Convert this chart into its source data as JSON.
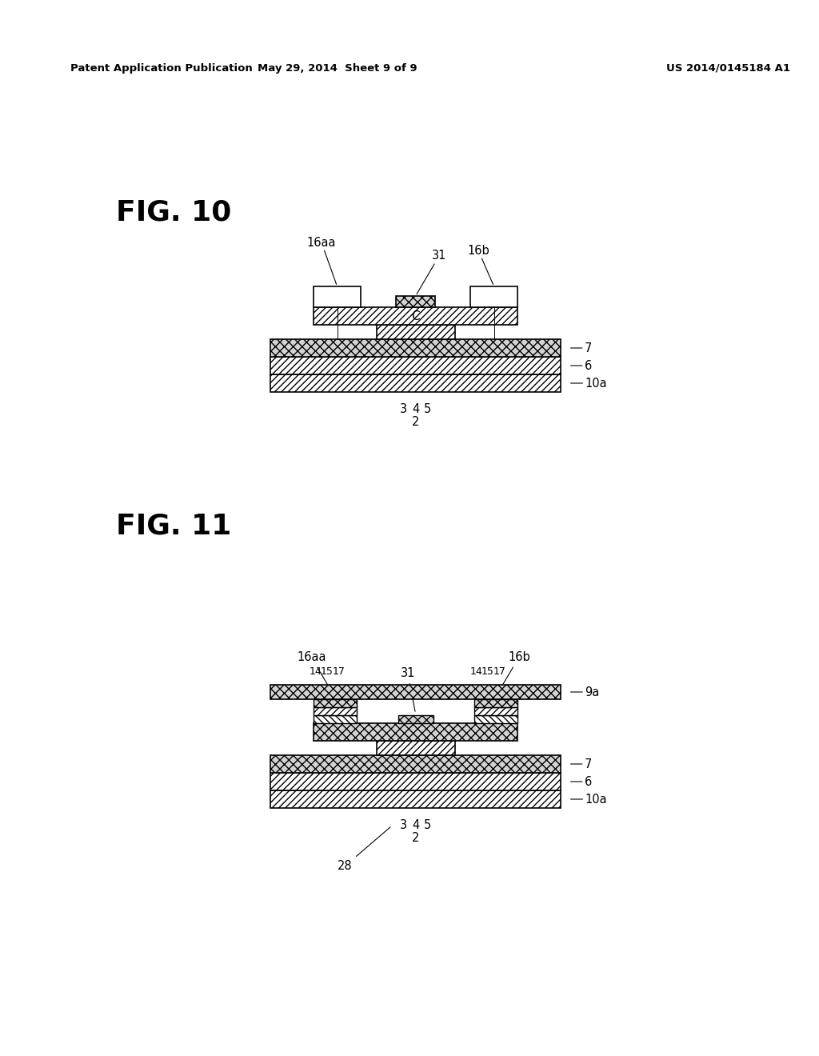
{
  "background_color": "#ffffff",
  "header_left": "Patent Application Publication",
  "header_mid": "May 29, 2014  Sheet 9 of 9",
  "header_right": "US 2014/0145184 A1",
  "fig10_label": "FIG. 10",
  "fig11_label": "FIG. 11"
}
